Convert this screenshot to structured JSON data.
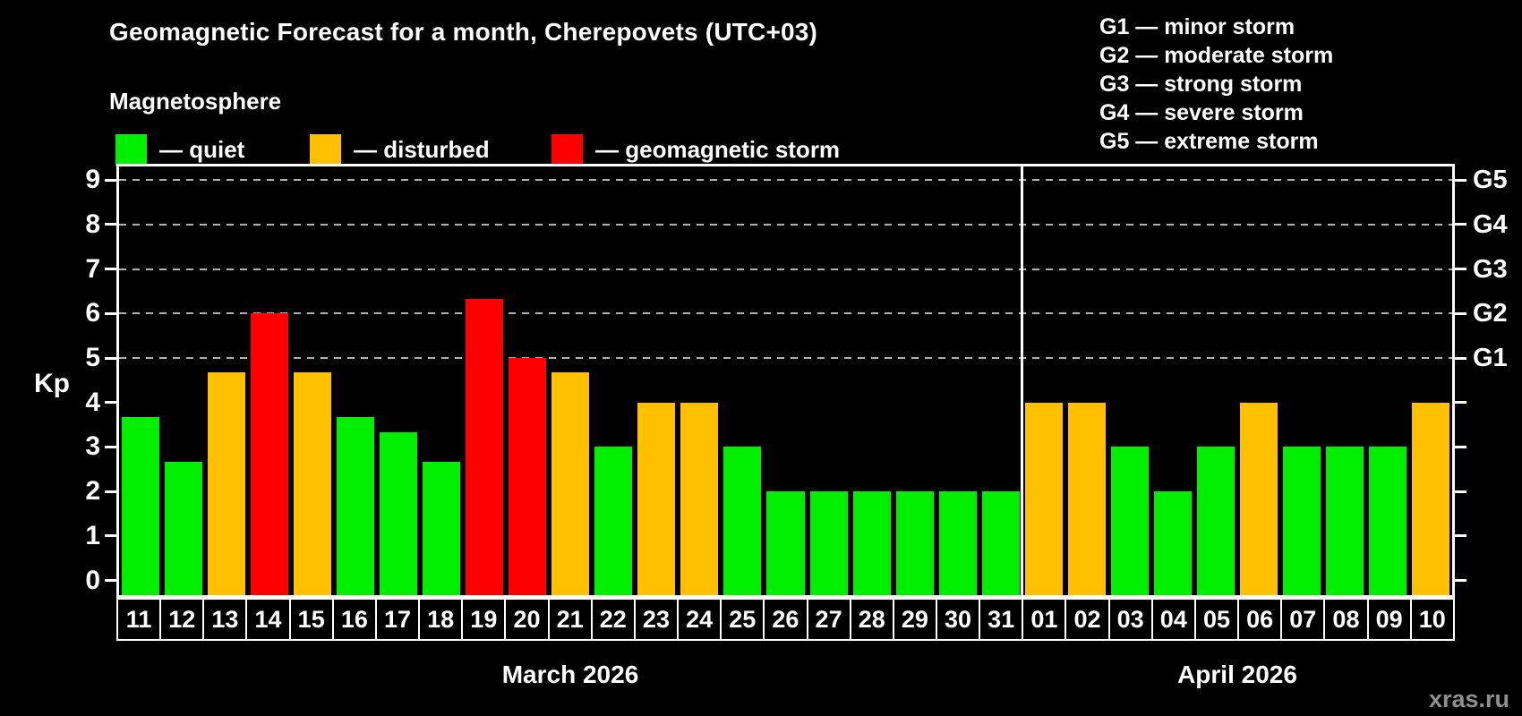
{
  "header": {
    "title": "Geomagnetic Forecast for a month, Cherepovets (UTC+03)",
    "subtitle": "Magnetosphere"
  },
  "legend": {
    "items": [
      {
        "key": "quiet",
        "label": "— quiet",
        "color": "#00ee00"
      },
      {
        "key": "disturbed",
        "label": "— disturbed",
        "color": "#ffc000"
      },
      {
        "key": "storm",
        "label": "— geomagnetic storm",
        "color": "#ff0000"
      }
    ]
  },
  "g_legend": {
    "lines": [
      "G1 — minor storm",
      "G2 — moderate storm",
      "G3 — strong storm",
      "G4 — severe storm",
      "G5 — extreme storm"
    ]
  },
  "watermark": "xras.ru",
  "chart_data": {
    "type": "bar",
    "title": "Geomagnetic Forecast for a month, Cherepovets (UTC+03)",
    "ylabel": "Kp",
    "ylim": [
      0,
      9
    ],
    "yticks": [
      0,
      1,
      2,
      3,
      4,
      5,
      6,
      7,
      8,
      9
    ],
    "gridlines": [
      5,
      6,
      7,
      8,
      9
    ],
    "grid": "dashed horizontal at Kp 5-9 only",
    "legend_position": "top",
    "right_axis": [
      {
        "value": 5,
        "label": "G1"
      },
      {
        "value": 6,
        "label": "G2"
      },
      {
        "value": 7,
        "label": "G3"
      },
      {
        "value": 8,
        "label": "G4"
      },
      {
        "value": 9,
        "label": "G5"
      }
    ],
    "colors": {
      "quiet": "#00ee00",
      "disturbed": "#ffc000",
      "storm": "#ff0000"
    },
    "sections": [
      {
        "month": "March 2026",
        "bars": [
          {
            "day": "11",
            "value": 3.67,
            "level": "quiet"
          },
          {
            "day": "12",
            "value": 2.67,
            "level": "quiet"
          },
          {
            "day": "13",
            "value": 4.67,
            "level": "disturbed"
          },
          {
            "day": "14",
            "value": 6.0,
            "level": "storm"
          },
          {
            "day": "15",
            "value": 4.67,
            "level": "disturbed"
          },
          {
            "day": "16",
            "value": 3.67,
            "level": "quiet"
          },
          {
            "day": "17",
            "value": 3.33,
            "level": "quiet"
          },
          {
            "day": "18",
            "value": 2.67,
            "level": "quiet"
          },
          {
            "day": "19",
            "value": 6.33,
            "level": "storm"
          },
          {
            "day": "20",
            "value": 5.0,
            "level": "storm"
          },
          {
            "day": "21",
            "value": 4.67,
            "level": "disturbed"
          },
          {
            "day": "22",
            "value": 3.0,
            "level": "quiet"
          },
          {
            "day": "23",
            "value": 4.0,
            "level": "disturbed"
          },
          {
            "day": "24",
            "value": 4.0,
            "level": "disturbed"
          },
          {
            "day": "25",
            "value": 3.0,
            "level": "quiet"
          },
          {
            "day": "26",
            "value": 2.0,
            "level": "quiet"
          },
          {
            "day": "27",
            "value": 2.0,
            "level": "quiet"
          },
          {
            "day": "28",
            "value": 2.0,
            "level": "quiet"
          },
          {
            "day": "29",
            "value": 2.0,
            "level": "quiet"
          },
          {
            "day": "30",
            "value": 2.0,
            "level": "quiet"
          },
          {
            "day": "31",
            "value": 2.0,
            "level": "quiet"
          }
        ]
      },
      {
        "month": "April 2026",
        "bars": [
          {
            "day": "01",
            "value": 4.0,
            "level": "disturbed"
          },
          {
            "day": "02",
            "value": 4.0,
            "level": "disturbed"
          },
          {
            "day": "03",
            "value": 3.0,
            "level": "quiet"
          },
          {
            "day": "04",
            "value": 2.0,
            "level": "quiet"
          },
          {
            "day": "05",
            "value": 3.0,
            "level": "quiet"
          },
          {
            "day": "06",
            "value": 4.0,
            "level": "disturbed"
          },
          {
            "day": "07",
            "value": 3.0,
            "level": "quiet"
          },
          {
            "day": "08",
            "value": 3.0,
            "level": "quiet"
          },
          {
            "day": "09",
            "value": 3.0,
            "level": "quiet"
          },
          {
            "day": "10",
            "value": 4.0,
            "level": "disturbed"
          }
        ]
      }
    ]
  }
}
